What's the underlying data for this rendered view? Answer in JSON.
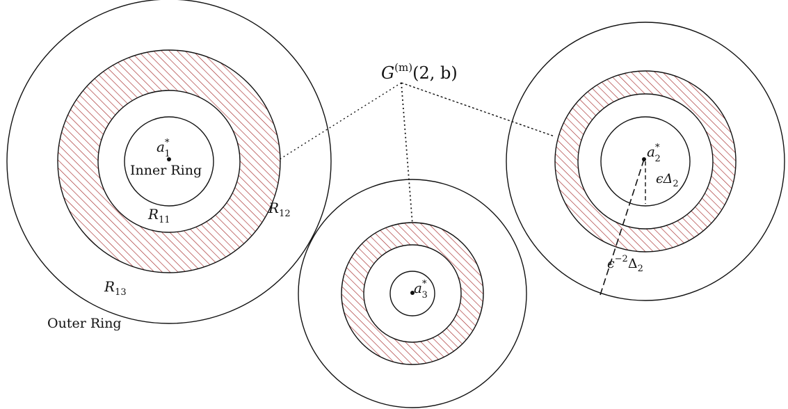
{
  "colors": {
    "hatch": "#a52a2a",
    "line": "#111111",
    "background": "#ffffff"
  },
  "hub": {
    "base": "G",
    "superscript": "(m)",
    "args": "(2, b)"
  },
  "cluster_1": {
    "center_base": "a",
    "center_super": "*",
    "center_sub": "1",
    "inner_ring_label": "Inner Ring",
    "r11_base": "R",
    "r11_sub": "11",
    "r12_base": "R",
    "r12_sub": "12",
    "r13_base": "R",
    "r13_sub": "13",
    "outer_ring_label": "Outer Ring"
  },
  "cluster_2": {
    "center_base": "a",
    "center_super": "*",
    "center_sub": "2",
    "inner_radius_label": {
      "base": "ϵΔ",
      "sub": "2"
    },
    "outer_radius_label": {
      "base": "ϵ",
      "super": "−2",
      "mid": "Δ",
      "sub": "2"
    }
  },
  "cluster_3": {
    "center_base": "a",
    "center_super": "*",
    "center_sub": "3"
  }
}
